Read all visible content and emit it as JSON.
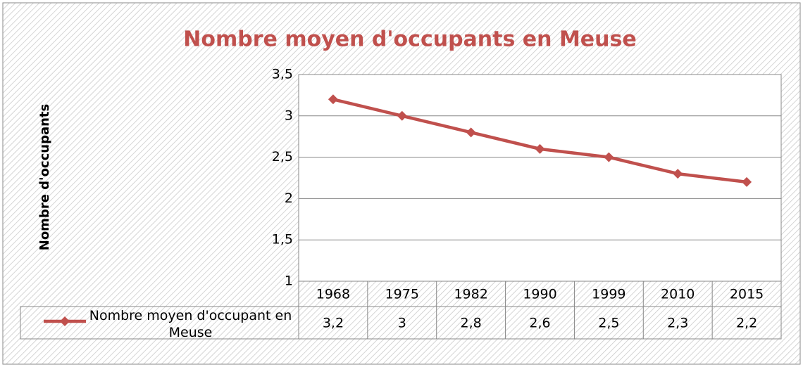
{
  "chart_data": {
    "type": "line",
    "title": "Nombre moyen d'occupants en Meuse",
    "y_label": "Nombre d'occupants",
    "categories": [
      "1968",
      "1975",
      "1982",
      "1990",
      "1999",
      "2010",
      "2015"
    ],
    "series": [
      {
        "name": "Nombre moyen d'occupant en Meuse",
        "color": "#c0504d",
        "values": [
          3.2,
          3,
          2.8,
          2.6,
          2.5,
          2.3,
          2.2
        ],
        "value_labels": [
          "3,2",
          "3",
          "2,8",
          "2,6",
          "2,5",
          "2,3",
          "2,2"
        ]
      }
    ],
    "ylim": [
      1,
      3.5
    ],
    "yticks": [
      1,
      {
        "value": 1.5,
        "label": "1,5"
      },
      2,
      {
        "value": 2.5,
        "label": "2,5"
      },
      3,
      {
        "value": 3.5,
        "label": "3,5"
      }
    ],
    "grid": true,
    "data_table": true
  }
}
